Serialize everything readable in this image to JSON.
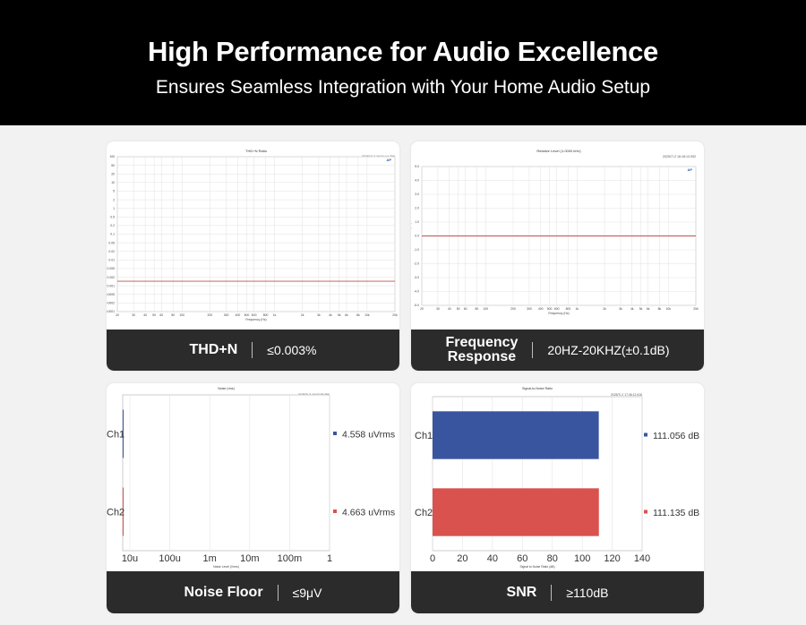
{
  "header": {
    "title": "High Performance for Audio Excellence",
    "subtitle": "Ensures Seamless Integration with Your Home Audio Setup"
  },
  "cards": [
    {
      "name": "THD+N",
      "value": "≤0.003%"
    },
    {
      "name_line1": "Frequency",
      "name_line2": "Response",
      "value": "20HZ-20KHZ(±0.1dB)"
    },
    {
      "name": "Noise Floor",
      "value": "≤9μV"
    },
    {
      "name": "SNR",
      "value": "≥110dB"
    }
  ],
  "chart_data": [
    {
      "type": "line",
      "title": "THD+N Ratio",
      "timestamp": "2025/7/-2 16:21:14.796",
      "xlabel": "Frequency (Hz)",
      "ylabel": "",
      "x_scale": "log",
      "y_scale": "log",
      "xlim": [
        20,
        20000
      ],
      "x_ticks": [
        "20",
        "30",
        "40",
        "50",
        "60",
        "80",
        "100",
        "200",
        "300",
        "400",
        "500",
        "600",
        "800",
        "1k",
        "2k",
        "3k",
        "4k",
        "5k",
        "6k",
        "8k",
        "10k",
        "20k"
      ],
      "y_ticks": [
        "100",
        "50",
        "20",
        "10",
        "5",
        "2",
        "1",
        "0.5",
        "0.2",
        "0.1",
        "0.05",
        "0.02",
        "0.01",
        "0.005",
        "0.002",
        "0.001",
        "0.0005",
        "0.0002",
        "0.0001"
      ],
      "series": [
        {
          "values": [
            0.0015,
            0.0015
          ]
        }
      ],
      "line_color": "#c0504d",
      "grid": true
    },
    {
      "type": "line",
      "title": "Relative Level (1.0000 kHz)",
      "timestamp": "2025/7/-2 16:18:13.092",
      "xlabel": "Frequency (Hz)",
      "ylabel": "Relative Level (dB)",
      "x_scale": "log",
      "xlim": [
        20,
        20000
      ],
      "ylim": [
        -5,
        5
      ],
      "x_ticks": [
        "20",
        "30",
        "40",
        "50",
        "60",
        "80",
        "100",
        "200",
        "300",
        "400",
        "500",
        "600",
        "800",
        "1k",
        "2k",
        "3k",
        "4k",
        "5k",
        "6k",
        "8k",
        "10k",
        "20k"
      ],
      "y_ticks": [
        "5.0",
        "4.0",
        "3.0",
        "2.0",
        "1.0",
        "0.0",
        "-1.0",
        "-2.0",
        "-3.0",
        "-4.0",
        "-5.0"
      ],
      "series": [
        {
          "values": [
            0.0,
            0.0
          ]
        }
      ],
      "line_color": "#c0504d",
      "grid": true
    },
    {
      "type": "bar",
      "orientation": "horizontal",
      "title": "Noise (rms)",
      "timestamp": "2025/7/-2 16:07:29.056",
      "xlabel": "Noise Level (Vrms)",
      "x_scale": "log",
      "x_ticks": [
        "10u",
        "100u",
        "1m",
        "10m",
        "100m",
        "1"
      ],
      "categories": [
        "Ch1",
        "Ch2"
      ],
      "values": [
        4.558,
        4.663
      ],
      "unit": "uVrms",
      "value_labels": [
        "4.558",
        "4.663"
      ],
      "colors": [
        "#3a559f",
        "#d9524e"
      ],
      "grid": true
    },
    {
      "type": "bar",
      "orientation": "horizontal",
      "title": "Signal-to-Noise Ratio",
      "timestamp": "2025/7/-2 17:46:12.616",
      "xlabel": "Signal to Noise Ratio (dB)",
      "xlim": [
        0,
        140
      ],
      "x_ticks": [
        "0",
        "20",
        "40",
        "60",
        "80",
        "100",
        "120",
        "140"
      ],
      "categories": [
        "Ch1",
        "Ch2"
      ],
      "values": [
        111.056,
        111.135
      ],
      "unit": "dB",
      "value_labels": [
        "111.056",
        "111.135"
      ],
      "colors": [
        "#3a559f",
        "#d9524e"
      ],
      "grid": true
    }
  ]
}
